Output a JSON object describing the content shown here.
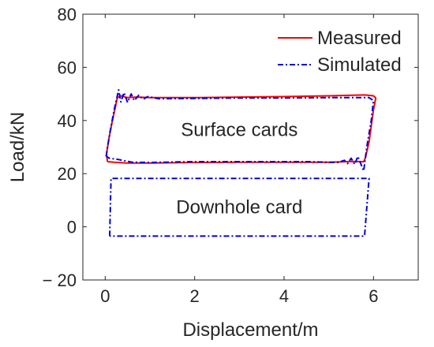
{
  "chart_data": {
    "type": "line",
    "title": "",
    "xlabel": "Displacement/m",
    "ylabel": "Load/kN",
    "xlim": [
      -0.5,
      7
    ],
    "ylim": [
      -20,
      80
    ],
    "x_ticks": [
      0,
      2,
      4,
      6
    ],
    "y_ticks": [
      -20,
      0,
      20,
      40,
      60,
      80
    ],
    "x_tick_labels": [
      "0",
      "2",
      "4",
      "6"
    ],
    "y_tick_labels": [
      "− 20",
      "0",
      "20",
      "40",
      "60",
      "80"
    ],
    "grid": false,
    "legend": {
      "position": "top-right"
    },
    "annotations": [
      {
        "text": "Surface cards",
        "x": 3.0,
        "y": 36.5
      },
      {
        "text": "Downhole card",
        "x": 3.0,
        "y": 7.5
      }
    ],
    "series": [
      {
        "name": "Measured",
        "color": "#ff0000",
        "dash": "solid",
        "points": [
          [
            0.05,
            24.5
          ],
          [
            0.03,
            27.5
          ],
          [
            0.08,
            33
          ],
          [
            0.15,
            39
          ],
          [
            0.22,
            44.5
          ],
          [
            0.27,
            48.5
          ],
          [
            0.35,
            49.3
          ],
          [
            0.5,
            48.6
          ],
          [
            0.7,
            48.8
          ],
          [
            1,
            48.6
          ],
          [
            2,
            48.6
          ],
          [
            3,
            48.8
          ],
          [
            4,
            49
          ],
          [
            5,
            49.3
          ],
          [
            5.8,
            49.6
          ],
          [
            6.0,
            49.3
          ],
          [
            6.05,
            48.5
          ],
          [
            6.0,
            44
          ],
          [
            5.9,
            32
          ],
          [
            5.82,
            26
          ],
          [
            5.78,
            24.5
          ],
          [
            5.5,
            24.6
          ],
          [
            5,
            24.3
          ],
          [
            4,
            24.3
          ],
          [
            3,
            24.3
          ],
          [
            2,
            24.2
          ],
          [
            1,
            24
          ],
          [
            0.5,
            24
          ],
          [
            0.2,
            24.3
          ],
          [
            0.05,
            24.5
          ]
        ]
      },
      {
        "name": "Simulated",
        "color": "#0000dd",
        "dash": "dashdot",
        "points": [
          [
            0.02,
            26.5
          ],
          [
            0.1,
            35
          ],
          [
            0.2,
            44
          ],
          [
            0.28,
            50
          ],
          [
            0.3,
            51.5
          ],
          [
            0.35,
            47
          ],
          [
            0.42,
            50.5
          ],
          [
            0.5,
            46.8
          ],
          [
            0.58,
            50
          ],
          [
            0.65,
            47.5
          ],
          [
            0.75,
            49.5
          ],
          [
            0.85,
            48
          ],
          [
            0.95,
            49
          ],
          [
            1.2,
            48.2
          ],
          [
            2,
            48.3
          ],
          [
            3,
            48.5
          ],
          [
            4,
            48.5
          ],
          [
            5,
            48.6
          ],
          [
            5.9,
            48.6
          ],
          [
            6.0,
            47.5
          ],
          [
            5.95,
            40
          ],
          [
            5.85,
            30
          ],
          [
            5.78,
            21
          ],
          [
            5.72,
            23.5
          ],
          [
            5.65,
            26.5
          ],
          [
            5.58,
            23.5
          ],
          [
            5.5,
            25.8
          ],
          [
            5.42,
            23.8
          ],
          [
            5.35,
            25
          ],
          [
            5.2,
            24.2
          ],
          [
            4.5,
            24.5
          ],
          [
            4,
            24.5
          ],
          [
            3,
            24.5
          ],
          [
            2,
            24.5
          ],
          [
            1,
            24.2
          ],
          [
            0.6,
            24.3
          ],
          [
            0.3,
            25.3
          ],
          [
            0.1,
            25.8
          ],
          [
            0.02,
            26.5
          ]
        ]
      },
      {
        "name": "",
        "color": "#0000dd",
        "dash": "dashdot",
        "points": [
          [
            0.1,
            -3.5
          ],
          [
            0.13,
            18.2
          ],
          [
            5.9,
            18.2
          ],
          [
            5.8,
            -3.5
          ],
          [
            0.1,
            -3.5
          ]
        ]
      }
    ]
  }
}
